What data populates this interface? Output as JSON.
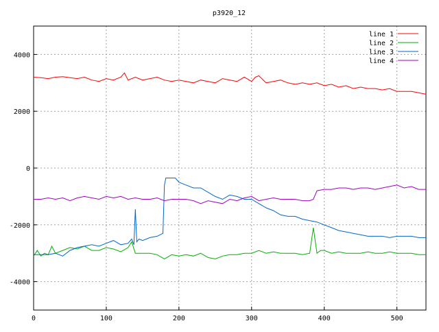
{
  "chart_data": {
    "type": "line",
    "title": "p3920_12",
    "xlabel": "",
    "ylabel": "",
    "xlim": [
      0,
      540
    ],
    "ylim": [
      -5000,
      5000
    ],
    "xticks": [
      0,
      100,
      200,
      300,
      400,
      500
    ],
    "yticks": [
      -4000,
      -2000,
      0,
      2000,
      4000
    ],
    "grid": true,
    "legend_position": "top-right",
    "series": [
      {
        "name": "line 1",
        "color": "#ff0000",
        "x": [
          0,
          10,
          20,
          30,
          40,
          50,
          60,
          70,
          80,
          90,
          100,
          110,
          120,
          125,
          130,
          140,
          150,
          160,
          170,
          180,
          190,
          200,
          210,
          220,
          230,
          240,
          250,
          260,
          270,
          280,
          290,
          300,
          305,
          310,
          320,
          330,
          340,
          350,
          360,
          370,
          380,
          390,
          400,
          410,
          420,
          430,
          440,
          450,
          460,
          470,
          480,
          490,
          500,
          510,
          520,
          530,
          540
        ],
        "values": [
          3200,
          3180,
          3150,
          3200,
          3220,
          3180,
          3150,
          3200,
          3100,
          3050,
          3150,
          3100,
          3200,
          3350,
          3100,
          3200,
          3100,
          3150,
          3200,
          3100,
          3050,
          3100,
          3050,
          3000,
          3100,
          3050,
          3000,
          3150,
          3100,
          3050,
          3200,
          3050,
          3200,
          3250,
          3000,
          3050,
          3100,
          3000,
          2950,
          3000,
          2950,
          3000,
          2900,
          2950,
          2850,
          2900,
          2800,
          2850,
          2800,
          2800,
          2750,
          2800,
          2700,
          2700,
          2700,
          2650,
          2600
        ]
      },
      {
        "name": "line 2",
        "color": "#00b000",
        "x": [
          0,
          5,
          10,
          15,
          20,
          25,
          30,
          40,
          50,
          60,
          70,
          80,
          90,
          100,
          110,
          120,
          130,
          135,
          140,
          150,
          160,
          170,
          180,
          190,
          200,
          210,
          220,
          230,
          240,
          250,
          260,
          270,
          280,
          290,
          300,
          310,
          320,
          330,
          340,
          350,
          360,
          370,
          380,
          385,
          390,
          395,
          400,
          410,
          420,
          430,
          440,
          450,
          460,
          470,
          480,
          490,
          500,
          510,
          520,
          530,
          540
        ],
        "values": [
          -3100,
          -2900,
          -3100,
          -3000,
          -3050,
          -2750,
          -3000,
          -2900,
          -2800,
          -2850,
          -2750,
          -2900,
          -2900,
          -2800,
          -2850,
          -2950,
          -2800,
          -2600,
          -3000,
          -3000,
          -3000,
          -3050,
          -3200,
          -3050,
          -3100,
          -3050,
          -3100,
          -3000,
          -3150,
          -3200,
          -3100,
          -3050,
          -3050,
          -3000,
          -3000,
          -2900,
          -3000,
          -2950,
          -3000,
          -3000,
          -3000,
          -3050,
          -3000,
          -2100,
          -3000,
          -2900,
          -2900,
          -3000,
          -2950,
          -3000,
          -3000,
          -3000,
          -2950,
          -3000,
          -3000,
          -2950,
          -3000,
          -3000,
          -3000,
          -3050,
          -3050
        ]
      },
      {
        "name": "line 3",
        "color": "#0066cc",
        "x": [
          0,
          10,
          20,
          30,
          40,
          50,
          60,
          70,
          80,
          90,
          100,
          110,
          120,
          130,
          135,
          138,
          140,
          142,
          145,
          150,
          160,
          170,
          178,
          180,
          182,
          190,
          195,
          200,
          210,
          220,
          230,
          240,
          250,
          260,
          270,
          280,
          290,
          300,
          310,
          320,
          330,
          340,
          350,
          360,
          370,
          380,
          390,
          400,
          410,
          420,
          430,
          440,
          450,
          460,
          470,
          480,
          490,
          500,
          510,
          520,
          530,
          540
        ],
        "values": [
          -3050,
          -3050,
          -3050,
          -3000,
          -3100,
          -2900,
          -2800,
          -2750,
          -2700,
          -2750,
          -2650,
          -2550,
          -2700,
          -2650,
          -2500,
          -2700,
          -1450,
          -2600,
          -2500,
          -2550,
          -2450,
          -2400,
          -2300,
          -600,
          -350,
          -350,
          -350,
          -500,
          -600,
          -700,
          -700,
          -850,
          -1000,
          -1100,
          -950,
          -1000,
          -1100,
          -1100,
          -1250,
          -1400,
          -1500,
          -1650,
          -1700,
          -1700,
          -1800,
          -1850,
          -1900,
          -2000,
          -2100,
          -2200,
          -2250,
          -2300,
          -2350,
          -2400,
          -2400,
          -2400,
          -2450,
          -2400,
          -2400,
          -2400,
          -2450,
          -2450
        ]
      },
      {
        "name": "line 4",
        "color": "#a000c0",
        "x": [
          0,
          10,
          20,
          30,
          40,
          50,
          60,
          70,
          80,
          90,
          100,
          110,
          120,
          130,
          140,
          150,
          160,
          170,
          180,
          190,
          200,
          210,
          220,
          230,
          240,
          250,
          260,
          270,
          280,
          290,
          300,
          310,
          320,
          330,
          340,
          350,
          360,
          370,
          380,
          385,
          390,
          400,
          410,
          420,
          430,
          440,
          450,
          460,
          470,
          480,
          490,
          500,
          510,
          520,
          530,
          540
        ],
        "values": [
          -1100,
          -1100,
          -1050,
          -1100,
          -1050,
          -1150,
          -1050,
          -1000,
          -1050,
          -1100,
          -1000,
          -1050,
          -1000,
          -1100,
          -1050,
          -1100,
          -1100,
          -1050,
          -1150,
          -1100,
          -1100,
          -1100,
          -1150,
          -1250,
          -1150,
          -1200,
          -1250,
          -1100,
          -1150,
          -1050,
          -1000,
          -1150,
          -1100,
          -1050,
          -1100,
          -1100,
          -1100,
          -1150,
          -1150,
          -1100,
          -800,
          -750,
          -750,
          -700,
          -700,
          -750,
          -700,
          -700,
          -750,
          -700,
          -650,
          -600,
          -700,
          -650,
          -750,
          -750
        ]
      }
    ]
  }
}
